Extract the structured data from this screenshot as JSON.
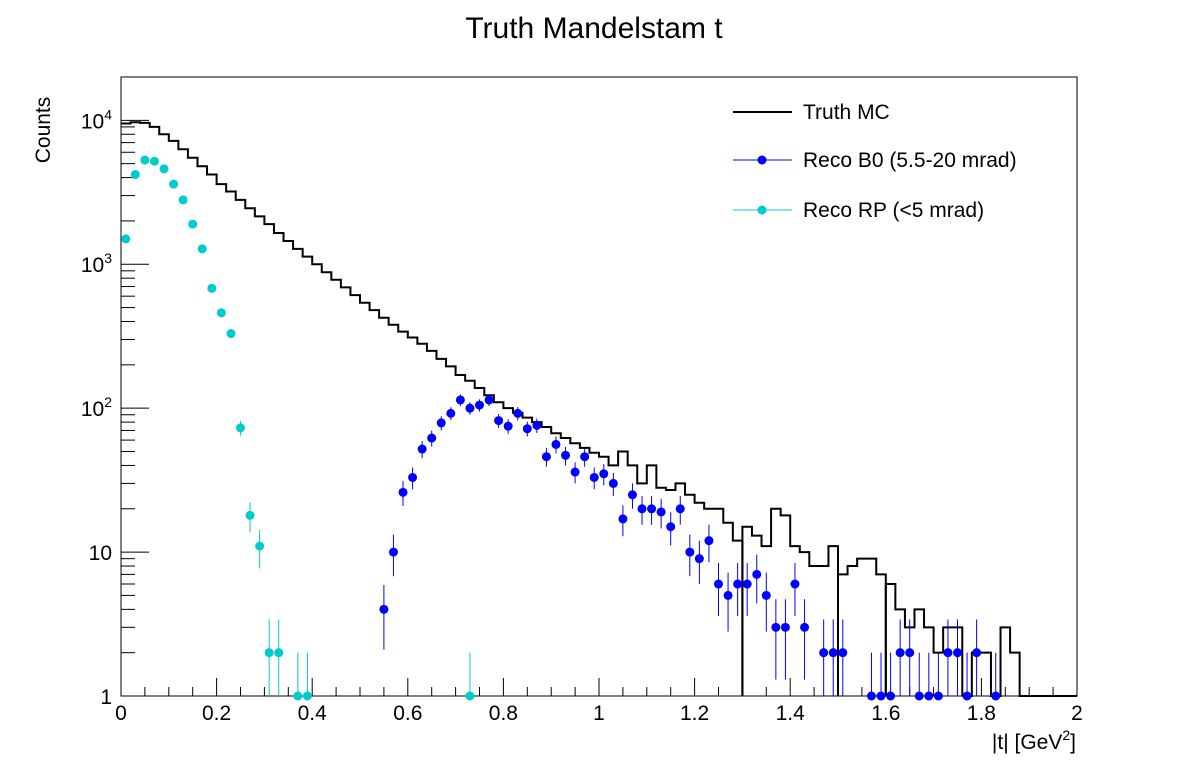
{
  "chart_data": {
    "type": "line",
    "title": "Truth Mandelstam t",
    "xlabel": "|t| [GeV",
    "xlabel_sup": "2",
    "xlabel_suffix": "]",
    "ylabel": "Counts",
    "xlim": [
      0,
      2
    ],
    "ylim": [
      1,
      20000
    ],
    "yscale": "log",
    "grid": false,
    "legend_position": "top-right",
    "x_ticks": [
      {
        "value": 0,
        "label": "0"
      },
      {
        "value": 0.2,
        "label": "0.2"
      },
      {
        "value": 0.4,
        "label": "0.4"
      },
      {
        "value": 0.6,
        "label": "0.6"
      },
      {
        "value": 0.8,
        "label": "0.8"
      },
      {
        "value": 1.0,
        "label": "1"
      },
      {
        "value": 1.2,
        "label": "1.2"
      },
      {
        "value": 1.4,
        "label": "1.4"
      },
      {
        "value": 1.6,
        "label": "1.6"
      },
      {
        "value": 1.8,
        "label": "1.8"
      },
      {
        "value": 2.0,
        "label": "2"
      }
    ],
    "y_ticks": [
      {
        "value": 1,
        "base": "1",
        "exp": ""
      },
      {
        "value": 10,
        "base": "10",
        "exp": ""
      },
      {
        "value": 100,
        "base": "10",
        "exp": "2"
      },
      {
        "value": 1000,
        "base": "10",
        "exp": "3"
      },
      {
        "value": 10000,
        "base": "10",
        "exp": "4"
      }
    ],
    "series": [
      {
        "name": "Truth MC",
        "kind": "step",
        "color": "#000000",
        "bin_width": 0.02,
        "x_start": 0.0,
        "values": [
          9500,
          9700,
          9600,
          9000,
          8000,
          7200,
          6300,
          5500,
          4800,
          4200,
          3600,
          3200,
          2800,
          2450,
          2150,
          1900,
          1650,
          1450,
          1280,
          1130,
          1000,
          880,
          780,
          690,
          610,
          540,
          480,
          425,
          380,
          340,
          310,
          280,
          250,
          220,
          195,
          170,
          155,
          138,
          123,
          110,
          100,
          93,
          86,
          80,
          74,
          67,
          62,
          57,
          53,
          49,
          46,
          40,
          50,
          40,
          30,
          40,
          28,
          27,
          30,
          25,
          22,
          20,
          20,
          16,
          12,
          15,
          13,
          11,
          20,
          18,
          11,
          10,
          8,
          8,
          11,
          7,
          8,
          9,
          9,
          7,
          6,
          4,
          3,
          4,
          3,
          2,
          3,
          3,
          1,
          2,
          2,
          1,
          3,
          2,
          1,
          1,
          1,
          1,
          1,
          1
        ],
        "segments": [
          [
            0,
            64
          ],
          [
            65,
            74
          ],
          [
            75,
            79
          ],
          [
            80,
            87
          ],
          [
            88,
            99
          ]
        ]
      },
      {
        "name": "Reco B0 (5.5-20 mrad)",
        "kind": "points",
        "color": "#0000ff",
        "points": [
          [
            0.55,
            4,
            1.9
          ],
          [
            0.57,
            10,
            3.2
          ],
          [
            0.59,
            26,
            5.1
          ],
          [
            0.61,
            33,
            5.7
          ],
          [
            0.63,
            52,
            7.2
          ],
          [
            0.65,
            62,
            7.9
          ],
          [
            0.67,
            79,
            8.9
          ],
          [
            0.69,
            92,
            9.6
          ],
          [
            0.71,
            114,
            10.7
          ],
          [
            0.73,
            100,
            10
          ],
          [
            0.75,
            105,
            10.2
          ],
          [
            0.77,
            114,
            10.7
          ],
          [
            0.79,
            82,
            9.1
          ],
          [
            0.81,
            75,
            8.7
          ],
          [
            0.83,
            92,
            9.6
          ],
          [
            0.85,
            72,
            8.5
          ],
          [
            0.87,
            76,
            8.7
          ],
          [
            0.89,
            46,
            6.8
          ],
          [
            0.91,
            56,
            7.5
          ],
          [
            0.93,
            47,
            6.9
          ],
          [
            0.95,
            36,
            6
          ],
          [
            0.97,
            46,
            6.8
          ],
          [
            0.99,
            33,
            5.7
          ],
          [
            1.01,
            35,
            5.9
          ],
          [
            1.03,
            30,
            5.5
          ],
          [
            1.05,
            17,
            4.1
          ],
          [
            1.07,
            25,
            5
          ],
          [
            1.09,
            20,
            4.5
          ],
          [
            1.11,
            20,
            4.5
          ],
          [
            1.13,
            19,
            4.4
          ],
          [
            1.15,
            15,
            3.9
          ],
          [
            1.17,
            20,
            4.5
          ],
          [
            1.19,
            10,
            3.2
          ],
          [
            1.21,
            9,
            3
          ],
          [
            1.23,
            12,
            3.5
          ],
          [
            1.25,
            6,
            2.4
          ],
          [
            1.27,
            5,
            2.2
          ],
          [
            1.29,
            6,
            2.4
          ],
          [
            1.31,
            6,
            2.4
          ],
          [
            1.33,
            7,
            2.6
          ],
          [
            1.35,
            5,
            2.2
          ],
          [
            1.37,
            3,
            1.7
          ],
          [
            1.39,
            3,
            1.7
          ],
          [
            1.41,
            6,
            2.4
          ],
          [
            1.43,
            3,
            1.7
          ],
          [
            1.47,
            2,
            1.4
          ],
          [
            1.49,
            2,
            1.4
          ],
          [
            1.51,
            2,
            1.4
          ],
          [
            1.57,
            1,
            1
          ],
          [
            1.59,
            1,
            1
          ],
          [
            1.61,
            1,
            1
          ],
          [
            1.63,
            2,
            1.4
          ],
          [
            1.65,
            2,
            1.4
          ],
          [
            1.67,
            1,
            1
          ],
          [
            1.69,
            1,
            1
          ],
          [
            1.71,
            1,
            1
          ],
          [
            1.73,
            2,
            1.4
          ],
          [
            1.75,
            2,
            1.4
          ],
          [
            1.77,
            1,
            1
          ],
          [
            1.79,
            2,
            1.4
          ],
          [
            1.83,
            1,
            1
          ]
        ]
      },
      {
        "name": "Reco RP (<5 mrad)",
        "kind": "points",
        "color": "#00cccc",
        "points": [
          [
            0.01,
            1500,
            39
          ],
          [
            0.03,
            4200,
            65
          ],
          [
            0.05,
            5300,
            73
          ],
          [
            0.07,
            5200,
            72
          ],
          [
            0.09,
            4600,
            68
          ],
          [
            0.11,
            3600,
            60
          ],
          [
            0.13,
            2800,
            53
          ],
          [
            0.15,
            1900,
            44
          ],
          [
            0.17,
            1280,
            36
          ],
          [
            0.19,
            680,
            26
          ],
          [
            0.21,
            460,
            21
          ],
          [
            0.23,
            330,
            18
          ],
          [
            0.25,
            73,
            8.5
          ],
          [
            0.27,
            18,
            4.2
          ],
          [
            0.29,
            11,
            3.3
          ],
          [
            0.31,
            2,
            1.4
          ],
          [
            0.33,
            2,
            1.4
          ],
          [
            0.37,
            1,
            1
          ],
          [
            0.39,
            1,
            1
          ],
          [
            0.73,
            1,
            1
          ]
        ]
      }
    ]
  }
}
